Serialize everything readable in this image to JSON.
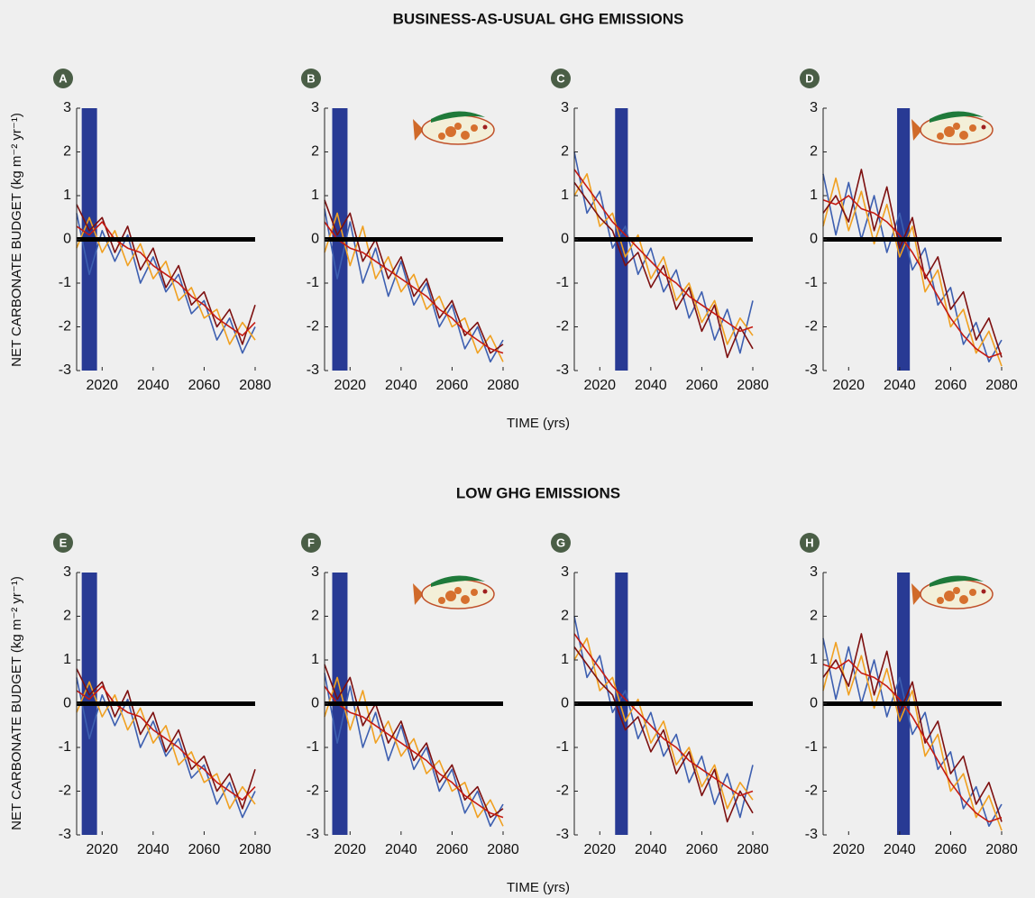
{
  "sections": [
    {
      "title": "BUSINESS-AS-USUAL GHG EMISSIONS",
      "x_label": "TIME (yrs)",
      "y_label": "NET CARBONATE BUDGET (kg m⁻² yr⁻¹)"
    },
    {
      "title": "LOW GHG EMISSIONS",
      "x_label": "TIME (yrs)",
      "y_label": "NET CARBONATE BUDGET (kg m⁻² yr⁻¹)"
    }
  ],
  "chart_data": [
    {
      "type": "line",
      "label": "A",
      "fish": false,
      "xlim": [
        2010,
        2080
      ],
      "ylim": [
        -3,
        3
      ],
      "xticks": [
        2020,
        2040,
        2060,
        2080
      ],
      "yticks": [
        -3,
        -2,
        -1,
        0,
        1,
        2,
        3
      ],
      "highlight_span": [
        2012,
        2018
      ],
      "highlight_color": "#283a94",
      "reference_line": 0,
      "x": [
        2010,
        2015,
        2020,
        2025,
        2030,
        2035,
        2040,
        2045,
        2050,
        2055,
        2060,
        2065,
        2070,
        2075,
        2080
      ],
      "series": [
        {
          "color": "#3d5fb0",
          "values": [
            0.6,
            -0.8,
            0.2,
            -0.5,
            0.1,
            -1.0,
            -0.4,
            -1.2,
            -0.8,
            -1.7,
            -1.4,
            -2.3,
            -1.8,
            -2.6,
            -2.0
          ]
        },
        {
          "color": "#f0a020",
          "values": [
            -0.2,
            0.5,
            -0.3,
            0.2,
            -0.6,
            -0.1,
            -0.9,
            -0.5,
            -1.4,
            -1.1,
            -1.8,
            -1.6,
            -2.4,
            -1.9,
            -2.3
          ]
        },
        {
          "color": "#7d1010",
          "values": [
            0.8,
            0.2,
            0.5,
            -0.3,
            0.3,
            -0.7,
            -0.2,
            -1.1,
            -0.6,
            -1.5,
            -1.2,
            -2.0,
            -1.6,
            -2.4,
            -1.5
          ]
        },
        {
          "color": "#c41a12",
          "values": [
            0.3,
            0.1,
            0.4,
            0.0,
            -0.2,
            -0.3,
            -0.6,
            -0.8,
            -1.0,
            -1.3,
            -1.5,
            -1.8,
            -2.0,
            -2.2,
            -1.9
          ]
        }
      ]
    },
    {
      "type": "line",
      "label": "B",
      "fish": true,
      "xlim": [
        2010,
        2080
      ],
      "ylim": [
        -3,
        3
      ],
      "xticks": [
        2020,
        2040,
        2060,
        2080
      ],
      "yticks": [
        -3,
        -2,
        -1,
        0,
        1,
        2,
        3
      ],
      "highlight_span": [
        2013,
        2019
      ],
      "highlight_color": "#283a94",
      "reference_line": 0,
      "x": [
        2010,
        2015,
        2020,
        2025,
        2030,
        2035,
        2040,
        2045,
        2050,
        2055,
        2060,
        2065,
        2070,
        2075,
        2080
      ],
      "series": [
        {
          "color": "#3d5fb0",
          "values": [
            0.7,
            -0.9,
            0.4,
            -1.0,
            -0.2,
            -1.3,
            -0.5,
            -1.5,
            -1.0,
            -2.0,
            -1.5,
            -2.5,
            -2.0,
            -2.8,
            -2.3
          ]
        },
        {
          "color": "#f0a020",
          "values": [
            -0.3,
            0.6,
            -0.6,
            0.3,
            -0.9,
            -0.4,
            -1.2,
            -0.8,
            -1.6,
            -1.3,
            -2.0,
            -1.8,
            -2.6,
            -2.2,
            -2.8
          ]
        },
        {
          "color": "#7d1010",
          "values": [
            0.9,
            0.1,
            0.6,
            -0.5,
            0.0,
            -0.9,
            -0.4,
            -1.3,
            -0.9,
            -1.8,
            -1.4,
            -2.2,
            -1.9,
            -2.6,
            -2.4
          ]
        },
        {
          "color": "#c41a12",
          "values": [
            0.4,
            0.0,
            -0.2,
            -0.3,
            -0.5,
            -0.7,
            -0.9,
            -1.1,
            -1.3,
            -1.6,
            -1.8,
            -2.1,
            -2.3,
            -2.5,
            -2.6
          ]
        }
      ]
    },
    {
      "type": "line",
      "label": "C",
      "fish": false,
      "xlim": [
        2010,
        2080
      ],
      "ylim": [
        -3,
        3
      ],
      "xticks": [
        2020,
        2040,
        2060,
        2080
      ],
      "yticks": [
        -3,
        -2,
        -1,
        0,
        1,
        2,
        3
      ],
      "highlight_span": [
        2026,
        2031
      ],
      "highlight_color": "#283a94",
      "reference_line": 0,
      "x": [
        2010,
        2015,
        2020,
        2025,
        2030,
        2035,
        2040,
        2045,
        2050,
        2055,
        2060,
        2065,
        2070,
        2075,
        2080
      ],
      "series": [
        {
          "color": "#3d5fb0",
          "values": [
            2.0,
            0.6,
            1.1,
            -0.2,
            0.3,
            -0.8,
            -0.2,
            -1.2,
            -0.7,
            -1.8,
            -1.2,
            -2.3,
            -1.6,
            -2.6,
            -1.4
          ]
        },
        {
          "color": "#f0a020",
          "values": [
            1.0,
            1.5,
            0.3,
            0.6,
            -0.4,
            0.1,
            -0.9,
            -0.4,
            -1.4,
            -1.0,
            -1.9,
            -1.4,
            -2.4,
            -1.8,
            -2.2
          ]
        },
        {
          "color": "#7d1010",
          "values": [
            1.3,
            0.9,
            0.5,
            0.2,
            -0.6,
            -0.3,
            -1.1,
            -0.6,
            -1.6,
            -1.1,
            -2.1,
            -1.5,
            -2.7,
            -2.0,
            -2.5
          ]
        },
        {
          "color": "#c41a12",
          "values": [
            1.6,
            1.2,
            0.8,
            0.4,
            0.1,
            -0.2,
            -0.5,
            -0.8,
            -1.0,
            -1.3,
            -1.5,
            -1.7,
            -1.9,
            -2.1,
            -2.0
          ]
        }
      ]
    },
    {
      "type": "line",
      "label": "D",
      "fish": true,
      "xlim": [
        2010,
        2080
      ],
      "ylim": [
        -3,
        3
      ],
      "xticks": [
        2020,
        2040,
        2060,
        2080
      ],
      "yticks": [
        -3,
        -2,
        -1,
        0,
        1,
        2,
        3
      ],
      "highlight_span": [
        2039,
        2044
      ],
      "highlight_color": "#283a94",
      "reference_line": 0,
      "x": [
        2010,
        2015,
        2020,
        2025,
        2030,
        2035,
        2040,
        2045,
        2050,
        2055,
        2060,
        2065,
        2070,
        2075,
        2080
      ],
      "series": [
        {
          "color": "#3d5fb0",
          "values": [
            1.5,
            0.1,
            1.3,
            0.0,
            1.0,
            -0.3,
            0.6,
            -0.7,
            -0.2,
            -1.5,
            -1.1,
            -2.4,
            -1.9,
            -2.8,
            -2.3
          ]
        },
        {
          "color": "#f0a020",
          "values": [
            0.3,
            1.4,
            0.2,
            1.1,
            -0.1,
            0.8,
            -0.4,
            0.3,
            -1.2,
            -0.7,
            -2.0,
            -1.6,
            -2.6,
            -2.1,
            -2.9
          ]
        },
        {
          "color": "#7d1010",
          "values": [
            0.6,
            1.0,
            0.4,
            1.6,
            0.2,
            1.2,
            -0.2,
            0.5,
            -0.9,
            -0.4,
            -1.6,
            -1.2,
            -2.3,
            -1.8,
            -2.7
          ]
        },
        {
          "color": "#c41a12",
          "values": [
            0.9,
            0.8,
            1.0,
            0.7,
            0.6,
            0.4,
            0.1,
            -0.3,
            -0.8,
            -1.3,
            -1.8,
            -2.2,
            -2.5,
            -2.7,
            -2.6
          ]
        }
      ]
    },
    {
      "type": "line",
      "label": "E",
      "fish": false,
      "xlim": [
        2010,
        2080
      ],
      "ylim": [
        -3,
        3
      ],
      "xticks": [
        2020,
        2040,
        2060,
        2080
      ],
      "yticks": [
        -3,
        -2,
        -1,
        0,
        1,
        2,
        3
      ],
      "highlight_span": [
        2012,
        2018
      ],
      "highlight_color": "#283a94",
      "reference_line": 0,
      "x": [
        2010,
        2015,
        2020,
        2025,
        2030,
        2035,
        2040,
        2045,
        2050,
        2055,
        2060,
        2065,
        2070,
        2075,
        2080
      ],
      "series": [
        {
          "color": "#3d5fb0",
          "values": [
            0.6,
            -0.8,
            0.2,
            -0.5,
            0.1,
            -1.0,
            -0.4,
            -1.2,
            -0.8,
            -1.7,
            -1.4,
            -2.3,
            -1.8,
            -2.6,
            -2.0
          ]
        },
        {
          "color": "#f0a020",
          "values": [
            -0.2,
            0.5,
            -0.3,
            0.2,
            -0.6,
            -0.1,
            -0.9,
            -0.5,
            -1.4,
            -1.1,
            -1.8,
            -1.6,
            -2.4,
            -1.9,
            -2.3
          ]
        },
        {
          "color": "#7d1010",
          "values": [
            0.8,
            0.2,
            0.5,
            -0.3,
            0.3,
            -0.7,
            -0.2,
            -1.1,
            -0.6,
            -1.5,
            -1.2,
            -2.0,
            -1.6,
            -2.4,
            -1.5
          ]
        },
        {
          "color": "#c41a12",
          "values": [
            0.3,
            0.1,
            0.4,
            0.0,
            -0.2,
            -0.3,
            -0.6,
            -0.8,
            -1.0,
            -1.3,
            -1.5,
            -1.8,
            -2.0,
            -2.2,
            -1.9
          ]
        }
      ]
    },
    {
      "type": "line",
      "label": "F",
      "fish": true,
      "xlim": [
        2010,
        2080
      ],
      "ylim": [
        -3,
        3
      ],
      "xticks": [
        2020,
        2040,
        2060,
        2080
      ],
      "yticks": [
        -3,
        -2,
        -1,
        0,
        1,
        2,
        3
      ],
      "highlight_span": [
        2013,
        2019
      ],
      "highlight_color": "#283a94",
      "reference_line": 0,
      "x": [
        2010,
        2015,
        2020,
        2025,
        2030,
        2035,
        2040,
        2045,
        2050,
        2055,
        2060,
        2065,
        2070,
        2075,
        2080
      ],
      "series": [
        {
          "color": "#3d5fb0",
          "values": [
            0.7,
            -0.9,
            0.4,
            -1.0,
            -0.2,
            -1.3,
            -0.5,
            -1.5,
            -1.0,
            -2.0,
            -1.5,
            -2.5,
            -2.0,
            -2.8,
            -2.3
          ]
        },
        {
          "color": "#f0a020",
          "values": [
            -0.3,
            0.6,
            -0.6,
            0.3,
            -0.9,
            -0.4,
            -1.2,
            -0.8,
            -1.6,
            -1.3,
            -2.0,
            -1.8,
            -2.6,
            -2.2,
            -2.8
          ]
        },
        {
          "color": "#7d1010",
          "values": [
            0.9,
            0.1,
            0.6,
            -0.5,
            0.0,
            -0.9,
            -0.4,
            -1.3,
            -0.9,
            -1.8,
            -1.4,
            -2.2,
            -1.9,
            -2.6,
            -2.4
          ]
        },
        {
          "color": "#c41a12",
          "values": [
            0.4,
            0.0,
            -0.2,
            -0.3,
            -0.5,
            -0.7,
            -0.9,
            -1.1,
            -1.3,
            -1.6,
            -1.8,
            -2.1,
            -2.3,
            -2.5,
            -2.6
          ]
        }
      ]
    },
    {
      "type": "line",
      "label": "G",
      "fish": false,
      "xlim": [
        2010,
        2080
      ],
      "ylim": [
        -3,
        3
      ],
      "xticks": [
        2020,
        2040,
        2060,
        2080
      ],
      "yticks": [
        -3,
        -2,
        -1,
        0,
        1,
        2,
        3
      ],
      "highlight_span": [
        2026,
        2031
      ],
      "highlight_color": "#283a94",
      "reference_line": 0,
      "x": [
        2010,
        2015,
        2020,
        2025,
        2030,
        2035,
        2040,
        2045,
        2050,
        2055,
        2060,
        2065,
        2070,
        2075,
        2080
      ],
      "series": [
        {
          "color": "#3d5fb0",
          "values": [
            2.0,
            0.6,
            1.1,
            -0.2,
            0.3,
            -0.8,
            -0.2,
            -1.2,
            -0.7,
            -1.8,
            -1.2,
            -2.3,
            -1.6,
            -2.6,
            -1.4
          ]
        },
        {
          "color": "#f0a020",
          "values": [
            1.0,
            1.5,
            0.3,
            0.6,
            -0.4,
            0.1,
            -0.9,
            -0.4,
            -1.4,
            -1.0,
            -1.9,
            -1.4,
            -2.4,
            -1.8,
            -2.2
          ]
        },
        {
          "color": "#7d1010",
          "values": [
            1.3,
            0.9,
            0.5,
            0.2,
            -0.6,
            -0.3,
            -1.1,
            -0.6,
            -1.6,
            -1.1,
            -2.1,
            -1.5,
            -2.7,
            -2.0,
            -2.5
          ]
        },
        {
          "color": "#c41a12",
          "values": [
            1.6,
            1.2,
            0.8,
            0.4,
            0.1,
            -0.2,
            -0.5,
            -0.8,
            -1.0,
            -1.3,
            -1.5,
            -1.7,
            -1.9,
            -2.1,
            -2.0
          ]
        }
      ]
    },
    {
      "type": "line",
      "label": "H",
      "fish": true,
      "xlim": [
        2010,
        2080
      ],
      "ylim": [
        -3,
        3
      ],
      "xticks": [
        2020,
        2040,
        2060,
        2080
      ],
      "yticks": [
        -3,
        -2,
        -1,
        0,
        1,
        2,
        3
      ],
      "highlight_span": [
        2039,
        2044
      ],
      "highlight_color": "#283a94",
      "reference_line": 0,
      "x": [
        2010,
        2015,
        2020,
        2025,
        2030,
        2035,
        2040,
        2045,
        2050,
        2055,
        2060,
        2065,
        2070,
        2075,
        2080
      ],
      "series": [
        {
          "color": "#3d5fb0",
          "values": [
            1.5,
            0.1,
            1.3,
            0.0,
            1.0,
            -0.3,
            0.6,
            -0.7,
            -0.2,
            -1.5,
            -1.1,
            -2.4,
            -1.9,
            -2.8,
            -2.3
          ]
        },
        {
          "color": "#f0a020",
          "values": [
            0.3,
            1.4,
            0.2,
            1.1,
            -0.1,
            0.8,
            -0.4,
            0.3,
            -1.2,
            -0.7,
            -2.0,
            -1.6,
            -2.6,
            -2.1,
            -2.9
          ]
        },
        {
          "color": "#7d1010",
          "values": [
            0.6,
            1.0,
            0.4,
            1.6,
            0.2,
            1.2,
            -0.2,
            0.5,
            -0.9,
            -0.4,
            -1.6,
            -1.2,
            -2.3,
            -1.8,
            -2.7
          ]
        },
        {
          "color": "#c41a12",
          "values": [
            0.9,
            0.8,
            1.0,
            0.7,
            0.6,
            0.4,
            0.1,
            -0.3,
            -0.8,
            -1.3,
            -1.8,
            -2.2,
            -2.5,
            -2.7,
            -2.6
          ]
        }
      ]
    }
  ]
}
